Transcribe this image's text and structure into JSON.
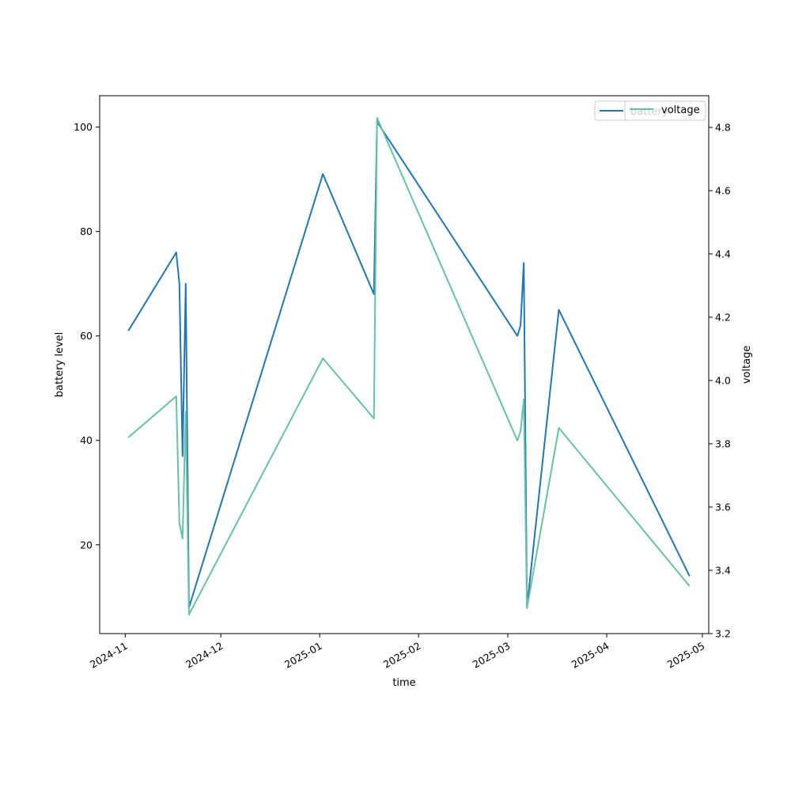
{
  "chart_data": {
    "type": "line",
    "xlabel": "time",
    "ylabel_left": "battery level",
    "ylabel_right": "voltage",
    "x_ticks": [
      "2024-11",
      "2024-12",
      "2025-01",
      "2025-02",
      "2025-03",
      "2025-04",
      "2025-05"
    ],
    "x_range": [
      "2024-10-24",
      "2025-05-03"
    ],
    "ylim_left": [
      3,
      106
    ],
    "ylim_right": [
      3.2,
      4.9
    ],
    "yticks_left": [
      20,
      40,
      60,
      80,
      100
    ],
    "yticks_right": [
      3.2,
      3.4,
      3.6,
      3.8,
      4.0,
      4.2,
      4.4,
      4.6,
      4.8
    ],
    "legend_loc": "upper right",
    "grid": false,
    "series": [
      {
        "name": "battery",
        "axis": "left",
        "color": "#1f77b4",
        "points": [
          [
            "2024-11-02",
            61
          ],
          [
            "2024-11-17",
            76
          ],
          [
            "2024-11-18",
            70
          ],
          [
            "2024-11-19",
            37
          ],
          [
            "2024-11-20",
            70
          ],
          [
            "2024-11-21",
            8
          ],
          [
            "2025-01-02",
            91
          ],
          [
            "2025-01-18",
            68
          ],
          [
            "2025-01-19",
            101
          ],
          [
            "2025-03-04",
            60
          ],
          [
            "2025-03-05",
            62
          ],
          [
            "2025-03-06",
            74
          ],
          [
            "2025-03-07",
            8
          ],
          [
            "2025-03-17",
            65
          ],
          [
            "2025-04-27",
            14
          ]
        ]
      },
      {
        "name": "voltage",
        "axis": "right",
        "color": "#66c2a5",
        "points": [
          [
            "2024-11-02",
            3.82
          ],
          [
            "2024-11-17",
            3.95
          ],
          [
            "2024-11-18",
            3.55
          ],
          [
            "2024-11-19",
            3.5
          ],
          [
            "2024-11-20",
            3.9
          ],
          [
            "2024-11-21",
            3.26
          ],
          [
            "2025-01-02",
            4.07
          ],
          [
            "2025-01-18",
            3.88
          ],
          [
            "2025-01-19",
            4.83
          ],
          [
            "2025-03-04",
            3.81
          ],
          [
            "2025-03-05",
            3.84
          ],
          [
            "2025-03-06",
            3.94
          ],
          [
            "2025-03-07",
            3.28
          ],
          [
            "2025-03-17",
            3.85
          ],
          [
            "2025-04-27",
            3.35
          ]
        ]
      }
    ],
    "legend_entries": [
      "battery",
      "voltage"
    ]
  }
}
